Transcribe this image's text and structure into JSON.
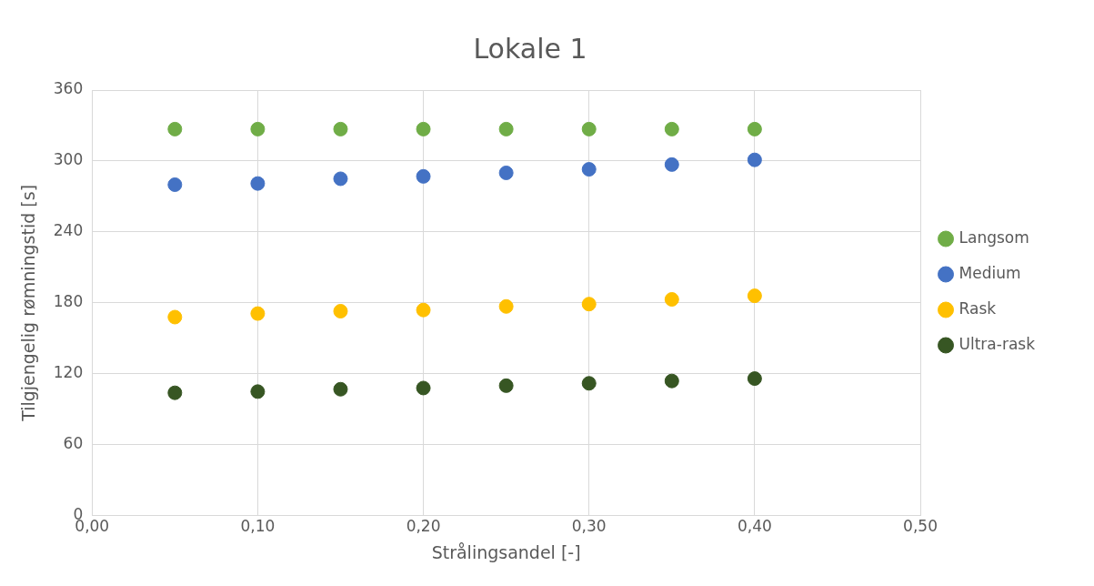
{
  "chart_data": {
    "type": "scatter",
    "title": "Lokale 1",
    "xlabel": "Strålingsandel [-]",
    "ylabel": "Tilgjengelig rømningstid [s]",
    "x": [
      0.05,
      0.1,
      0.15,
      0.2,
      0.25,
      0.3,
      0.35,
      0.4
    ],
    "series": [
      {
        "name": "Langsom",
        "color": "#70ad47",
        "values": [
          327,
          327,
          327,
          327,
          327,
          327,
          327,
          327
        ]
      },
      {
        "name": "Medium",
        "color": "#4472c4",
        "values": [
          280,
          281,
          285,
          287,
          290,
          293,
          297,
          301
        ]
      },
      {
        "name": "Rask",
        "color": "#ffc000",
        "values": [
          168,
          171,
          173,
          174,
          177,
          179,
          183,
          186
        ]
      },
      {
        "name": "Ultra-rask",
        "color": "#375623",
        "values": [
          104,
          105,
          107,
          108,
          110,
          112,
          114,
          116
        ]
      }
    ],
    "xlim": [
      0,
      0.5
    ],
    "xticks": [
      {
        "value": 0,
        "label": "0,00"
      },
      {
        "value": 0.1,
        "label": "0,10"
      },
      {
        "value": 0.2,
        "label": "0,20"
      },
      {
        "value": 0.3,
        "label": "0,30"
      },
      {
        "value": 0.4,
        "label": "0,40"
      },
      {
        "value": 0.5,
        "label": "0,50"
      }
    ],
    "ylim": [
      0,
      360
    ],
    "yticks": [
      0,
      60,
      120,
      180,
      240,
      300,
      360
    ],
    "grid": true,
    "legend": "right",
    "marker": "circle"
  }
}
